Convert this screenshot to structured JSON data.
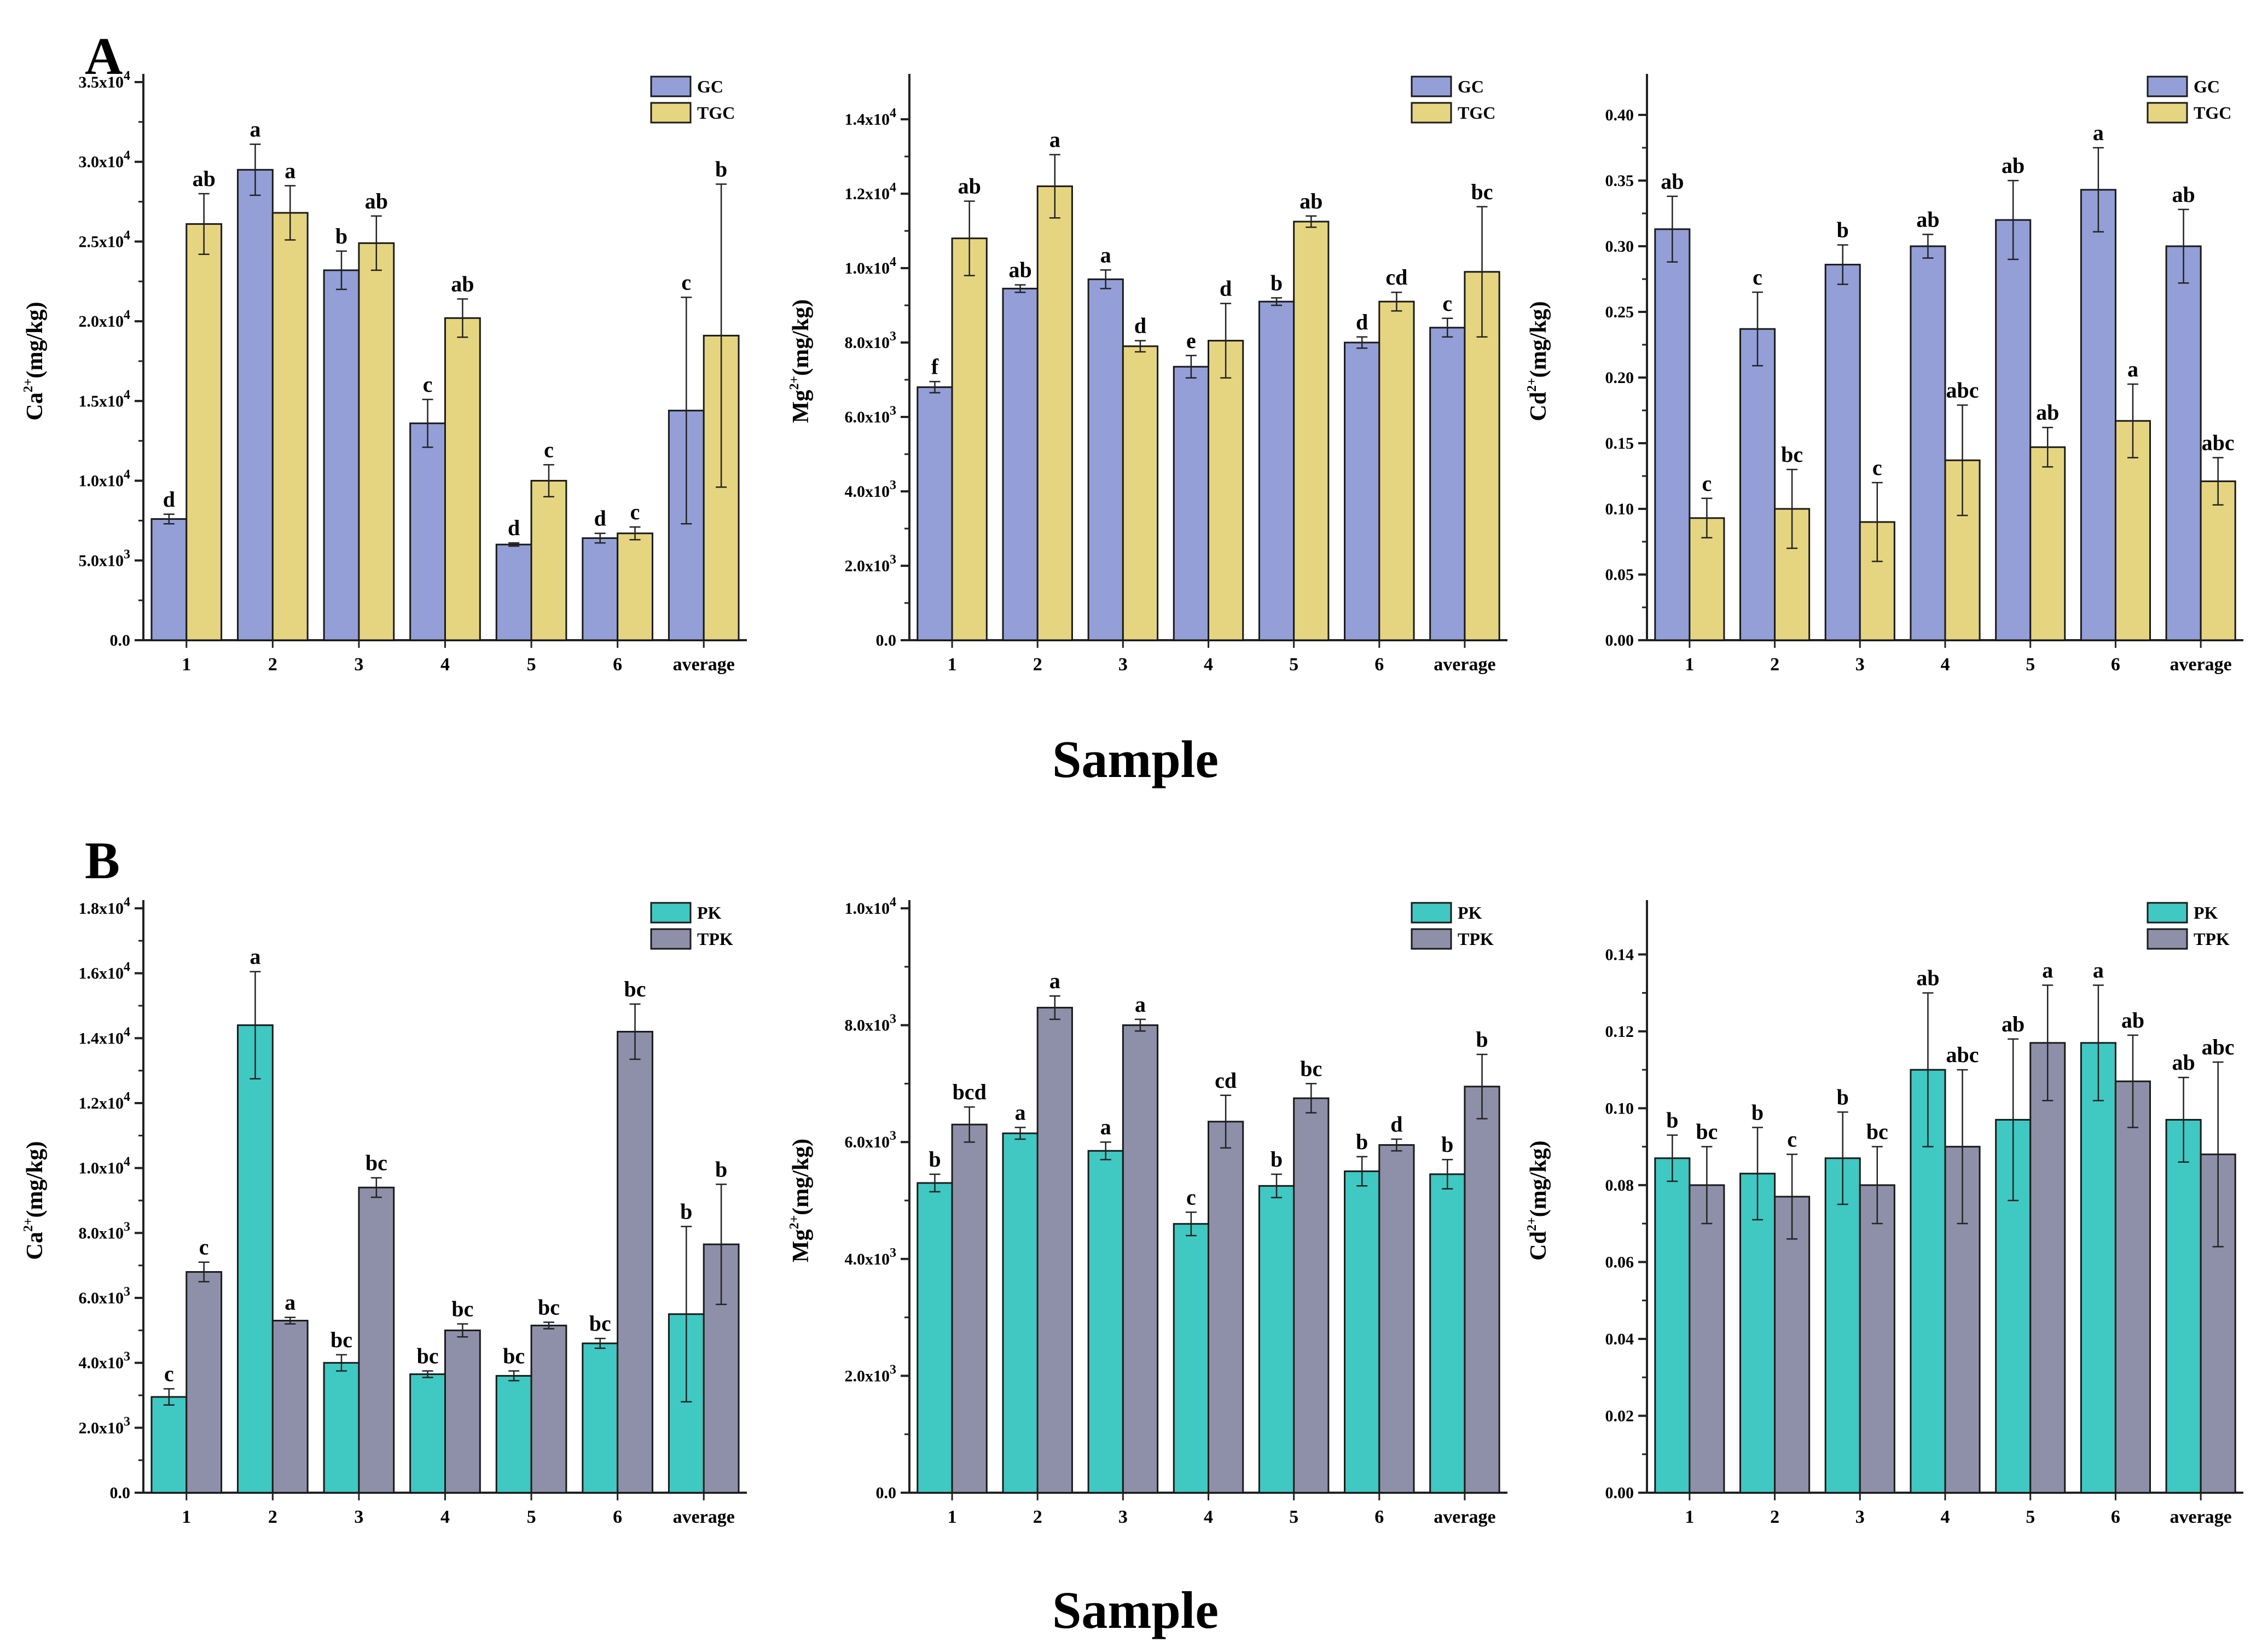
{
  "figure": {
    "panel_A_label": "A",
    "panel_B_label": "B",
    "sample_label_A": "Sample",
    "sample_label_B": "Sample"
  },
  "colors": {
    "GC": "#939fd6",
    "TGC": "#e6d580",
    "PK": "#40c8c2",
    "TPK": "#8e8fa8"
  },
  "chart_data": [
    {
      "id": "A-Ca",
      "type": "bar",
      "panel": "A",
      "ylabel_base": "Ca",
      "ylabel_sup": "2+",
      "ylabel_unit": "(mg/kg)",
      "categories": [
        "1",
        "2",
        "3",
        "4",
        "5",
        "6",
        "average"
      ],
      "ylim": [
        0,
        35000
      ],
      "yticks": [
        0,
        5000,
        10000,
        15000,
        20000,
        25000,
        30000,
        35000
      ],
      "yticklabels": [
        [
          "0.0",
          ""
        ],
        [
          "5.0x10",
          "3"
        ],
        [
          "1.0x10",
          "4"
        ],
        [
          "1.5x10",
          "4"
        ],
        [
          "2.0x10",
          "4"
        ],
        [
          "2.5x10",
          "4"
        ],
        [
          "3.0x10",
          "4"
        ],
        [
          "3.5x10",
          "4"
        ]
      ],
      "legend_position": "top-right",
      "series": [
        {
          "name": "GC",
          "color_key": "GC",
          "values": [
            7600,
            29500,
            23200,
            13600,
            6000,
            6400,
            14400
          ],
          "errors": [
            300,
            1600,
            1200,
            1500,
            100,
            300,
            7100
          ],
          "letters": [
            "d",
            "a",
            "b",
            "c",
            "d",
            "d",
            "c"
          ]
        },
        {
          "name": "TGC",
          "color_key": "TGC",
          "values": [
            26100,
            26800,
            24900,
            20200,
            10000,
            6700,
            19100
          ],
          "errors": [
            1900,
            1700,
            1700,
            1200,
            1000,
            400,
            9500
          ],
          "letters": [
            "ab",
            "a",
            "ab",
            "ab",
            "c",
            "c",
            "b"
          ]
        }
      ]
    },
    {
      "id": "A-Mg",
      "type": "bar",
      "panel": "A",
      "ylabel_base": "Mg",
      "ylabel_sup": "2+",
      "ylabel_unit": "(mg/kg)",
      "categories": [
        "1",
        "2",
        "3",
        "4",
        "5",
        "6",
        "average"
      ],
      "ylim": [
        0,
        15000
      ],
      "yticks": [
        0,
        2000,
        4000,
        6000,
        8000,
        10000,
        12000,
        14000
      ],
      "yticklabels": [
        [
          "0.0",
          ""
        ],
        [
          "2.0x10",
          "3"
        ],
        [
          "4.0x10",
          "3"
        ],
        [
          "6.0x10",
          "3"
        ],
        [
          "8.0x10",
          "3"
        ],
        [
          "1.0x10",
          "4"
        ],
        [
          "1.2x10",
          "4"
        ],
        [
          "1.4x10",
          "4"
        ]
      ],
      "legend_position": "top-right",
      "series": [
        {
          "name": "GC",
          "color_key": "GC",
          "values": [
            6800,
            9450,
            9700,
            7350,
            9100,
            8000,
            8400
          ],
          "errors": [
            150,
            100,
            250,
            300,
            100,
            150,
            250
          ],
          "letters": [
            "f",
            "ab",
            "a",
            "e",
            "b",
            "d",
            "c"
          ]
        },
        {
          "name": "TGC",
          "color_key": "TGC",
          "values": [
            10800,
            12200,
            7900,
            8050,
            11250,
            9100,
            9900
          ],
          "errors": [
            1000,
            850,
            150,
            1000,
            150,
            250,
            1750
          ],
          "letters": [
            "ab",
            "a",
            "d",
            "d",
            "ab",
            "cd",
            "bc"
          ]
        }
      ]
    },
    {
      "id": "A-Cd",
      "type": "bar",
      "panel": "A",
      "ylabel_base": "Cd",
      "ylabel_sup": "2+",
      "ylabel_unit": "(mg/kg)",
      "categories": [
        "1",
        "2",
        "3",
        "4",
        "5",
        "6",
        "average"
      ],
      "ylim": [
        0,
        0.425
      ],
      "yticks": [
        0,
        0.05,
        0.1,
        0.15,
        0.2,
        0.25,
        0.3,
        0.35,
        0.4
      ],
      "yticklabels": [
        [
          "0.00",
          ""
        ],
        [
          "0.05",
          ""
        ],
        [
          "0.10",
          ""
        ],
        [
          "0.15",
          ""
        ],
        [
          "0.20",
          ""
        ],
        [
          "0.25",
          ""
        ],
        [
          "0.30",
          ""
        ],
        [
          "0.35",
          ""
        ],
        [
          "0.40",
          ""
        ]
      ],
      "legend_position": "top-right",
      "series": [
        {
          "name": "GC",
          "color_key": "GC",
          "values": [
            0.313,
            0.237,
            0.286,
            0.3,
            0.32,
            0.343,
            0.3
          ],
          "errors": [
            0.025,
            0.028,
            0.015,
            0.009,
            0.03,
            0.032,
            0.028
          ],
          "letters": [
            "ab",
            "c",
            "b",
            "ab",
            "ab",
            "a",
            "ab"
          ]
        },
        {
          "name": "TGC",
          "color_key": "TGC",
          "values": [
            0.093,
            0.1,
            0.09,
            0.137,
            0.147,
            0.167,
            0.121
          ],
          "errors": [
            0.015,
            0.03,
            0.03,
            0.042,
            0.015,
            0.028,
            0.018
          ],
          "letters": [
            "c",
            "bc",
            "c",
            "abc",
            "ab",
            "a",
            "abc"
          ]
        }
      ]
    },
    {
      "id": "B-Ca",
      "type": "bar",
      "panel": "B",
      "ylabel_base": "Ca",
      "ylabel_sup": "2+",
      "ylabel_unit": "(mg/kg)",
      "categories": [
        "1",
        "2",
        "3",
        "4",
        "5",
        "6",
        "average"
      ],
      "ylim": [
        0,
        18000
      ],
      "yticks": [
        0,
        2000,
        4000,
        6000,
        8000,
        10000,
        12000,
        14000,
        16000,
        18000
      ],
      "yticklabels": [
        [
          "0.0",
          ""
        ],
        [
          "2.0x10",
          "3"
        ],
        [
          "4.0x10",
          "3"
        ],
        [
          "6.0x10",
          "3"
        ],
        [
          "8.0x10",
          "3"
        ],
        [
          "1.0x10",
          "4"
        ],
        [
          "1.2x10",
          "4"
        ],
        [
          "1.4x10",
          "4"
        ],
        [
          "1.6x10",
          "4"
        ],
        [
          "1.8x10",
          "4"
        ]
      ],
      "legend_position": "top-right",
      "series": [
        {
          "name": "PK",
          "color_key": "PK",
          "values": [
            2950,
            14400,
            4000,
            3650,
            3600,
            4600,
            5500
          ],
          "errors": [
            250,
            1650,
            250,
            100,
            150,
            150,
            2700
          ],
          "letters": [
            "c",
            "a",
            "bc",
            "bc",
            "bc",
            "bc",
            "b"
          ]
        },
        {
          "name": "TPK",
          "color_key": "TPK",
          "values": [
            6800,
            5300,
            9400,
            5000,
            5150,
            14200,
            7650
          ],
          "errors": [
            300,
            100,
            300,
            200,
            100,
            850,
            1850
          ],
          "letters": [
            "c",
            "a",
            "bc",
            "bc",
            "bc",
            "bc",
            "b"
          ]
        }
      ]
    },
    {
      "id": "B-Mg",
      "type": "bar",
      "panel": "B",
      "ylabel_base": "Mg",
      "ylabel_sup": "2+",
      "ylabel_unit": "(mg/kg)",
      "categories": [
        "1",
        "2",
        "3",
        "4",
        "5",
        "6",
        "average"
      ],
      "ylim": [
        0,
        10000
      ],
      "yticks": [
        0,
        2000,
        4000,
        6000,
        8000,
        10000
      ],
      "yticklabels": [
        [
          "0.0",
          ""
        ],
        [
          "2.0x10",
          "3"
        ],
        [
          "4.0x10",
          "3"
        ],
        [
          "6.0x10",
          "3"
        ],
        [
          "8.0x10",
          "3"
        ],
        [
          "1.0x10",
          "4"
        ]
      ],
      "legend_position": "top-right",
      "series": [
        {
          "name": "PK",
          "color_key": "PK",
          "values": [
            5300,
            6150,
            5850,
            4600,
            5250,
            5500,
            5450
          ],
          "errors": [
            150,
            100,
            150,
            200,
            200,
            250,
            250
          ],
          "letters": [
            "b",
            "a",
            "a",
            "c",
            "b",
            "b",
            "b"
          ]
        },
        {
          "name": "TPK",
          "color_key": "TPK",
          "values": [
            6300,
            8300,
            8000,
            6350,
            6750,
            5950,
            6950
          ],
          "errors": [
            300,
            200,
            100,
            450,
            250,
            100,
            550
          ],
          "letters": [
            "bcd",
            "a",
            "a",
            "cd",
            "bc",
            "d",
            "b"
          ]
        }
      ]
    },
    {
      "id": "B-Cd",
      "type": "bar",
      "panel": "B",
      "ylabel_base": "Cd",
      "ylabel_sup": "2+",
      "ylabel_unit": "(mg/kg)",
      "categories": [
        "1",
        "2",
        "3",
        "4",
        "5",
        "6",
        "average"
      ],
      "ylim": [
        0,
        0.152
      ],
      "yticks": [
        0,
        0.02,
        0.04,
        0.06,
        0.08,
        0.1,
        0.12,
        0.14
      ],
      "yticklabels": [
        [
          "0.00",
          ""
        ],
        [
          "0.02",
          ""
        ],
        [
          "0.04",
          ""
        ],
        [
          "0.06",
          ""
        ],
        [
          "0.08",
          ""
        ],
        [
          "0.10",
          ""
        ],
        [
          "0.12",
          ""
        ],
        [
          "0.14",
          ""
        ]
      ],
      "legend_position": "top-right",
      "series": [
        {
          "name": "PK",
          "color_key": "PK",
          "values": [
            0.087,
            0.083,
            0.087,
            0.11,
            0.097,
            0.117,
            0.097
          ],
          "errors": [
            0.006,
            0.012,
            0.012,
            0.02,
            0.021,
            0.015,
            0.011
          ],
          "letters": [
            "b",
            "b",
            "b",
            "ab",
            "ab",
            "a",
            "ab"
          ]
        },
        {
          "name": "TPK",
          "color_key": "TPK",
          "values": [
            0.08,
            0.077,
            0.08,
            0.09,
            0.117,
            0.107,
            0.088
          ],
          "errors": [
            0.01,
            0.011,
            0.01,
            0.02,
            0.015,
            0.012,
            0.024
          ],
          "letters": [
            "bc",
            "c",
            "bc",
            "abc",
            "a",
            "ab",
            "abc"
          ]
        }
      ]
    }
  ]
}
